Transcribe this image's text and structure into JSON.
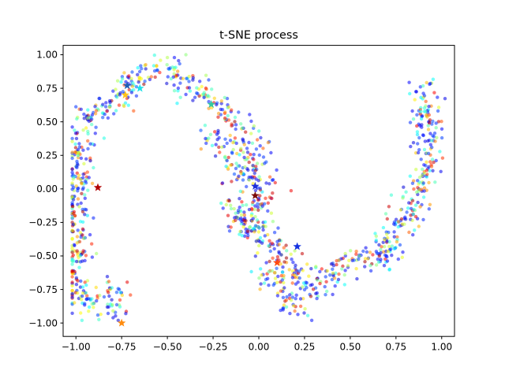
{
  "chart_data": {
    "type": "scatter",
    "title": "t-SNE process",
    "xlabel": "",
    "ylabel": "",
    "xlim": [
      -1.07,
      1.07
    ],
    "ylim": [
      -1.1,
      1.07
    ],
    "x_ticks": [
      -1.0,
      -0.75,
      -0.5,
      -0.25,
      0.0,
      0.25,
      0.5,
      0.75,
      1.0
    ],
    "x_tick_labels": [
      "−1.00",
      "−0.75",
      "−0.50",
      "−0.25",
      "0.00",
      "0.25",
      "0.50",
      "0.75",
      "1.00"
    ],
    "y_ticks": [
      -1.0,
      -0.75,
      -0.5,
      -0.25,
      0.0,
      0.25,
      0.5,
      0.75,
      1.0
    ],
    "y_tick_labels": [
      "−1.00",
      "−0.75",
      "−0.50",
      "−0.25",
      "0.00",
      "0.25",
      "0.50",
      "0.75",
      "1.00"
    ],
    "grid": false,
    "legend": "none",
    "colormap": "jet",
    "point_alpha": 0.55,
    "n_points_approx": 1300,
    "structure_path": [
      [
        -0.98,
        -0.9
      ],
      [
        -1.0,
        -0.45
      ],
      [
        -1.0,
        -0.1
      ],
      [
        -0.97,
        0.2
      ],
      [
        -0.97,
        0.45
      ],
      [
        -0.85,
        0.58
      ],
      [
        -0.75,
        0.72
      ],
      [
        -0.6,
        0.88
      ],
      [
        -0.5,
        0.93
      ],
      [
        -0.42,
        0.82
      ],
      [
        -0.32,
        0.7
      ],
      [
        -0.2,
        0.58
      ],
      [
        -0.1,
        0.45
      ],
      [
        -0.02,
        0.3
      ],
      [
        0.02,
        0.1
      ],
      [
        0.0,
        -0.1
      ],
      [
        -0.05,
        -0.25
      ],
      [
        0.05,
        -0.35
      ],
      [
        0.15,
        -0.5
      ],
      [
        0.22,
        -0.62
      ],
      [
        0.28,
        -0.72
      ],
      [
        0.38,
        -0.65
      ],
      [
        0.48,
        -0.55
      ],
      [
        0.58,
        -0.48
      ],
      [
        0.68,
        -0.55
      ],
      [
        0.72,
        -0.35
      ],
      [
        0.8,
        -0.2
      ],
      [
        0.87,
        -0.02
      ],
      [
        0.93,
        0.25
      ],
      [
        0.92,
        0.55
      ],
      [
        0.91,
        0.75
      ]
    ],
    "structure_extra": [
      [
        [
          -0.82,
          -0.7
        ],
        [
          -0.8,
          -0.85
        ],
        [
          -0.78,
          -0.98
        ]
      ],
      [
        [
          -0.3,
          0.42
        ],
        [
          -0.2,
          0.3
        ],
        [
          -0.12,
          0.18
        ],
        [
          -0.05,
          0.05
        ]
      ],
      [
        [
          0.02,
          -0.58
        ],
        [
          0.1,
          -0.72
        ],
        [
          0.18,
          -0.82
        ],
        [
          0.28,
          -0.92
        ]
      ],
      [
        [
          -0.15,
          -0.05
        ],
        [
          -0.1,
          -0.25
        ],
        [
          0.02,
          -0.35
        ]
      ]
    ],
    "highlight_points": [
      {
        "x": -0.72,
        "y": 0.77,
        "color": "#1f5fb4"
      },
      {
        "x": -0.65,
        "y": 0.75,
        "color": "#1fe0e8"
      },
      {
        "x": -0.73,
        "y": 0.7,
        "color": "#ffc21a"
      },
      {
        "x": -0.26,
        "y": 0.63,
        "color": "#35c9a0"
      },
      {
        "x": -0.88,
        "y": 0.01,
        "color": "#b20000"
      },
      {
        "x": -0.02,
        "y": 0.02,
        "color": "#1f2fd8"
      },
      {
        "x": -0.02,
        "y": -0.05,
        "color": "#7a0a0a"
      },
      {
        "x": 0.21,
        "y": -0.43,
        "color": "#1230e0"
      },
      {
        "x": 0.1,
        "y": -0.55,
        "color": "#ff4a12"
      },
      {
        "x": -0.75,
        "y": -1.0,
        "color": "#ff8c10"
      }
    ]
  }
}
